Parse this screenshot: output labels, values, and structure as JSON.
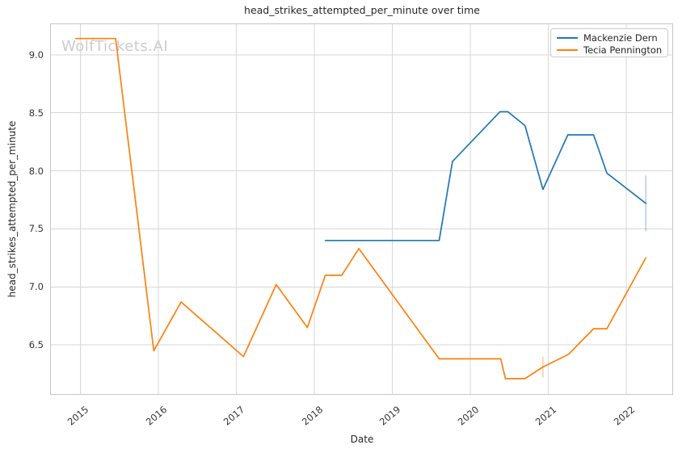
{
  "watermark": {
    "text": "WolfTickets.AI"
  },
  "colors": {
    "blue": "#1f77b4",
    "orange": "#ff7f0e",
    "grid": "#d7d7d7",
    "spine": "#c6c6c6",
    "text": "#262626",
    "tick_text": "#333333",
    "watermark": "#cbcbcb",
    "legend_border": "#cccccc"
  },
  "chart_data": {
    "type": "line",
    "title": "head_strikes_attempted_per_minute over time",
    "xlabel": "Date",
    "ylabel": "head_strikes_attempted_per_minute",
    "grid": true,
    "legend_position": "upper right",
    "x_ticks": [
      2015,
      2016,
      2017,
      2018,
      2019,
      2020,
      2021,
      2022
    ],
    "y_ticks": [
      6.5,
      7.0,
      7.5,
      8.0,
      8.5,
      9.0
    ],
    "x_range": [
      2014.61,
      2022.6
    ],
    "y_range": [
      6.07,
      9.27
    ],
    "series": [
      {
        "name": "Mackenzie Dern",
        "color": "#1f77b4",
        "points": [
          [
            2018.14,
            7.4
          ],
          [
            2019.6,
            7.4
          ],
          [
            2019.77,
            8.08
          ],
          [
            2020.38,
            8.51
          ],
          [
            2020.48,
            8.51
          ],
          [
            2020.7,
            8.39
          ],
          [
            2020.93,
            7.84
          ],
          [
            2021.25,
            8.31
          ],
          [
            2021.58,
            8.31
          ],
          [
            2021.75,
            7.98
          ],
          [
            2022.25,
            7.72
          ]
        ]
      },
      {
        "name": "Tecia Pennington",
        "color": "#ff7f0e",
        "points": [
          [
            2014.94,
            9.14
          ],
          [
            2015.45,
            9.14
          ],
          [
            2015.94,
            6.45
          ],
          [
            2016.29,
            6.87
          ],
          [
            2017.09,
            6.4
          ],
          [
            2017.51,
            7.02
          ],
          [
            2017.91,
            6.65
          ],
          [
            2018.14,
            7.1
          ],
          [
            2018.35,
            7.1
          ],
          [
            2018.57,
            7.33
          ],
          [
            2019.6,
            6.38
          ],
          [
            2020.39,
            6.38
          ],
          [
            2020.45,
            6.21
          ],
          [
            2020.7,
            6.21
          ],
          [
            2020.93,
            6.31
          ],
          [
            2021.26,
            6.42
          ],
          [
            2021.58,
            6.64
          ],
          [
            2021.75,
            6.64
          ],
          [
            2022.25,
            7.25
          ]
        ]
      }
    ],
    "error_bars": [
      {
        "series": "Mackenzie Dern",
        "x": 2022.25,
        "y_low": 7.48,
        "y_high": 7.96,
        "color": "rgba(31,119,180,0.30)"
      },
      {
        "series": "Tecia Pennington",
        "x": 2020.93,
        "y_low": 6.22,
        "y_high": 6.4,
        "color": "rgba(255,127,14,0.35)"
      }
    ]
  }
}
